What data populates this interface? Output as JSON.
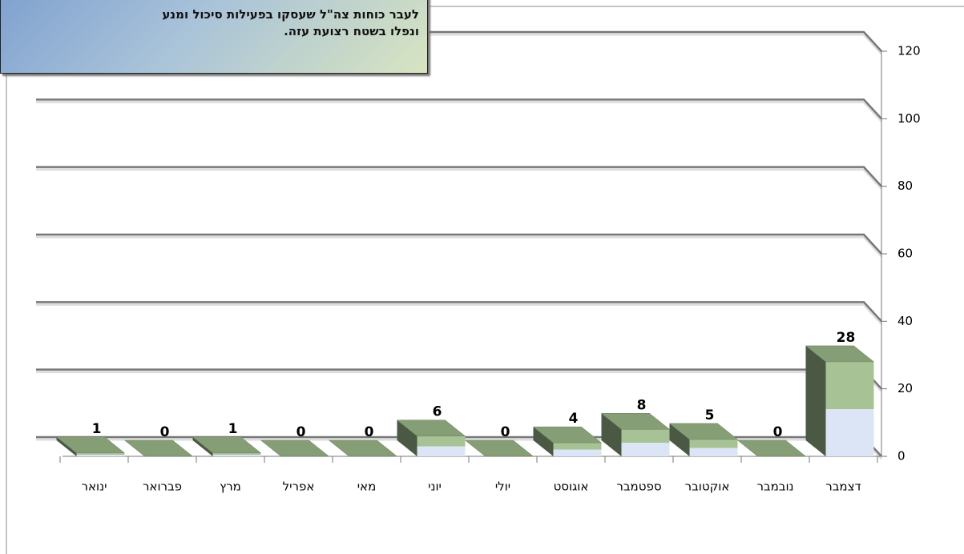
{
  "chart_data": {
    "type": "bar3d",
    "annotation": [
      "לעבר כוחות צה\"ל שעסקו בפעילות סיכול ומנע",
      "ונפלו בשטח רצועת עזה."
    ],
    "categories": [
      "ינואר",
      "פברואר",
      "מרץ",
      "אפריל",
      "מאי",
      "יוני",
      "יולי",
      "אוגוסט",
      "ספטמבר",
      "אוקטובר",
      "נובמבר",
      "דצמבר"
    ],
    "values": [
      1,
      0,
      1,
      0,
      0,
      6,
      0,
      4,
      8,
      5,
      0,
      28
    ],
    "ylim": [
      0,
      120
    ],
    "yticks": [
      0,
      20,
      40,
      60,
      80,
      100,
      120
    ],
    "grid": true,
    "colors": {
      "front_bottom": "#dbe5f5",
      "front_top": "#a7c294",
      "top": "#859e76",
      "side": "#4b5944"
    }
  }
}
